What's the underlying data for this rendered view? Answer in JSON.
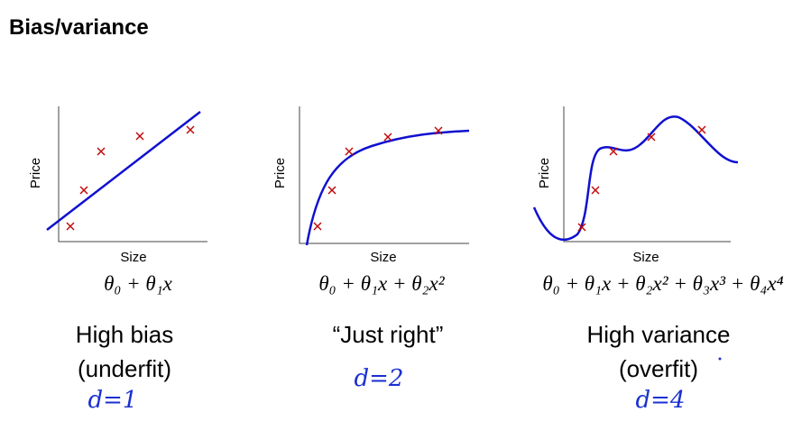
{
  "title": "Bias/variance",
  "panels": [
    {
      "x_label": "Size",
      "y_label": "Price",
      "formula": "θ₀ + θ₁x",
      "caption": [
        "High bias",
        "(underfit)"
      ],
      "annotation": "d=1"
    },
    {
      "x_label": "Size",
      "y_label": "Price",
      "formula": "θ₀ + θ₁x + θ₂x²",
      "caption": [
        "“Just right”"
      ],
      "annotation": "d=2"
    },
    {
      "x_label": "Size",
      "y_label": "Price",
      "formula": "θ₀ + θ₁x + θ₂x² + θ₃x³ + θ₄x⁴",
      "caption": [
        "High variance",
        "(overfit)"
      ],
      "annotation": "d=4"
    }
  ]
}
